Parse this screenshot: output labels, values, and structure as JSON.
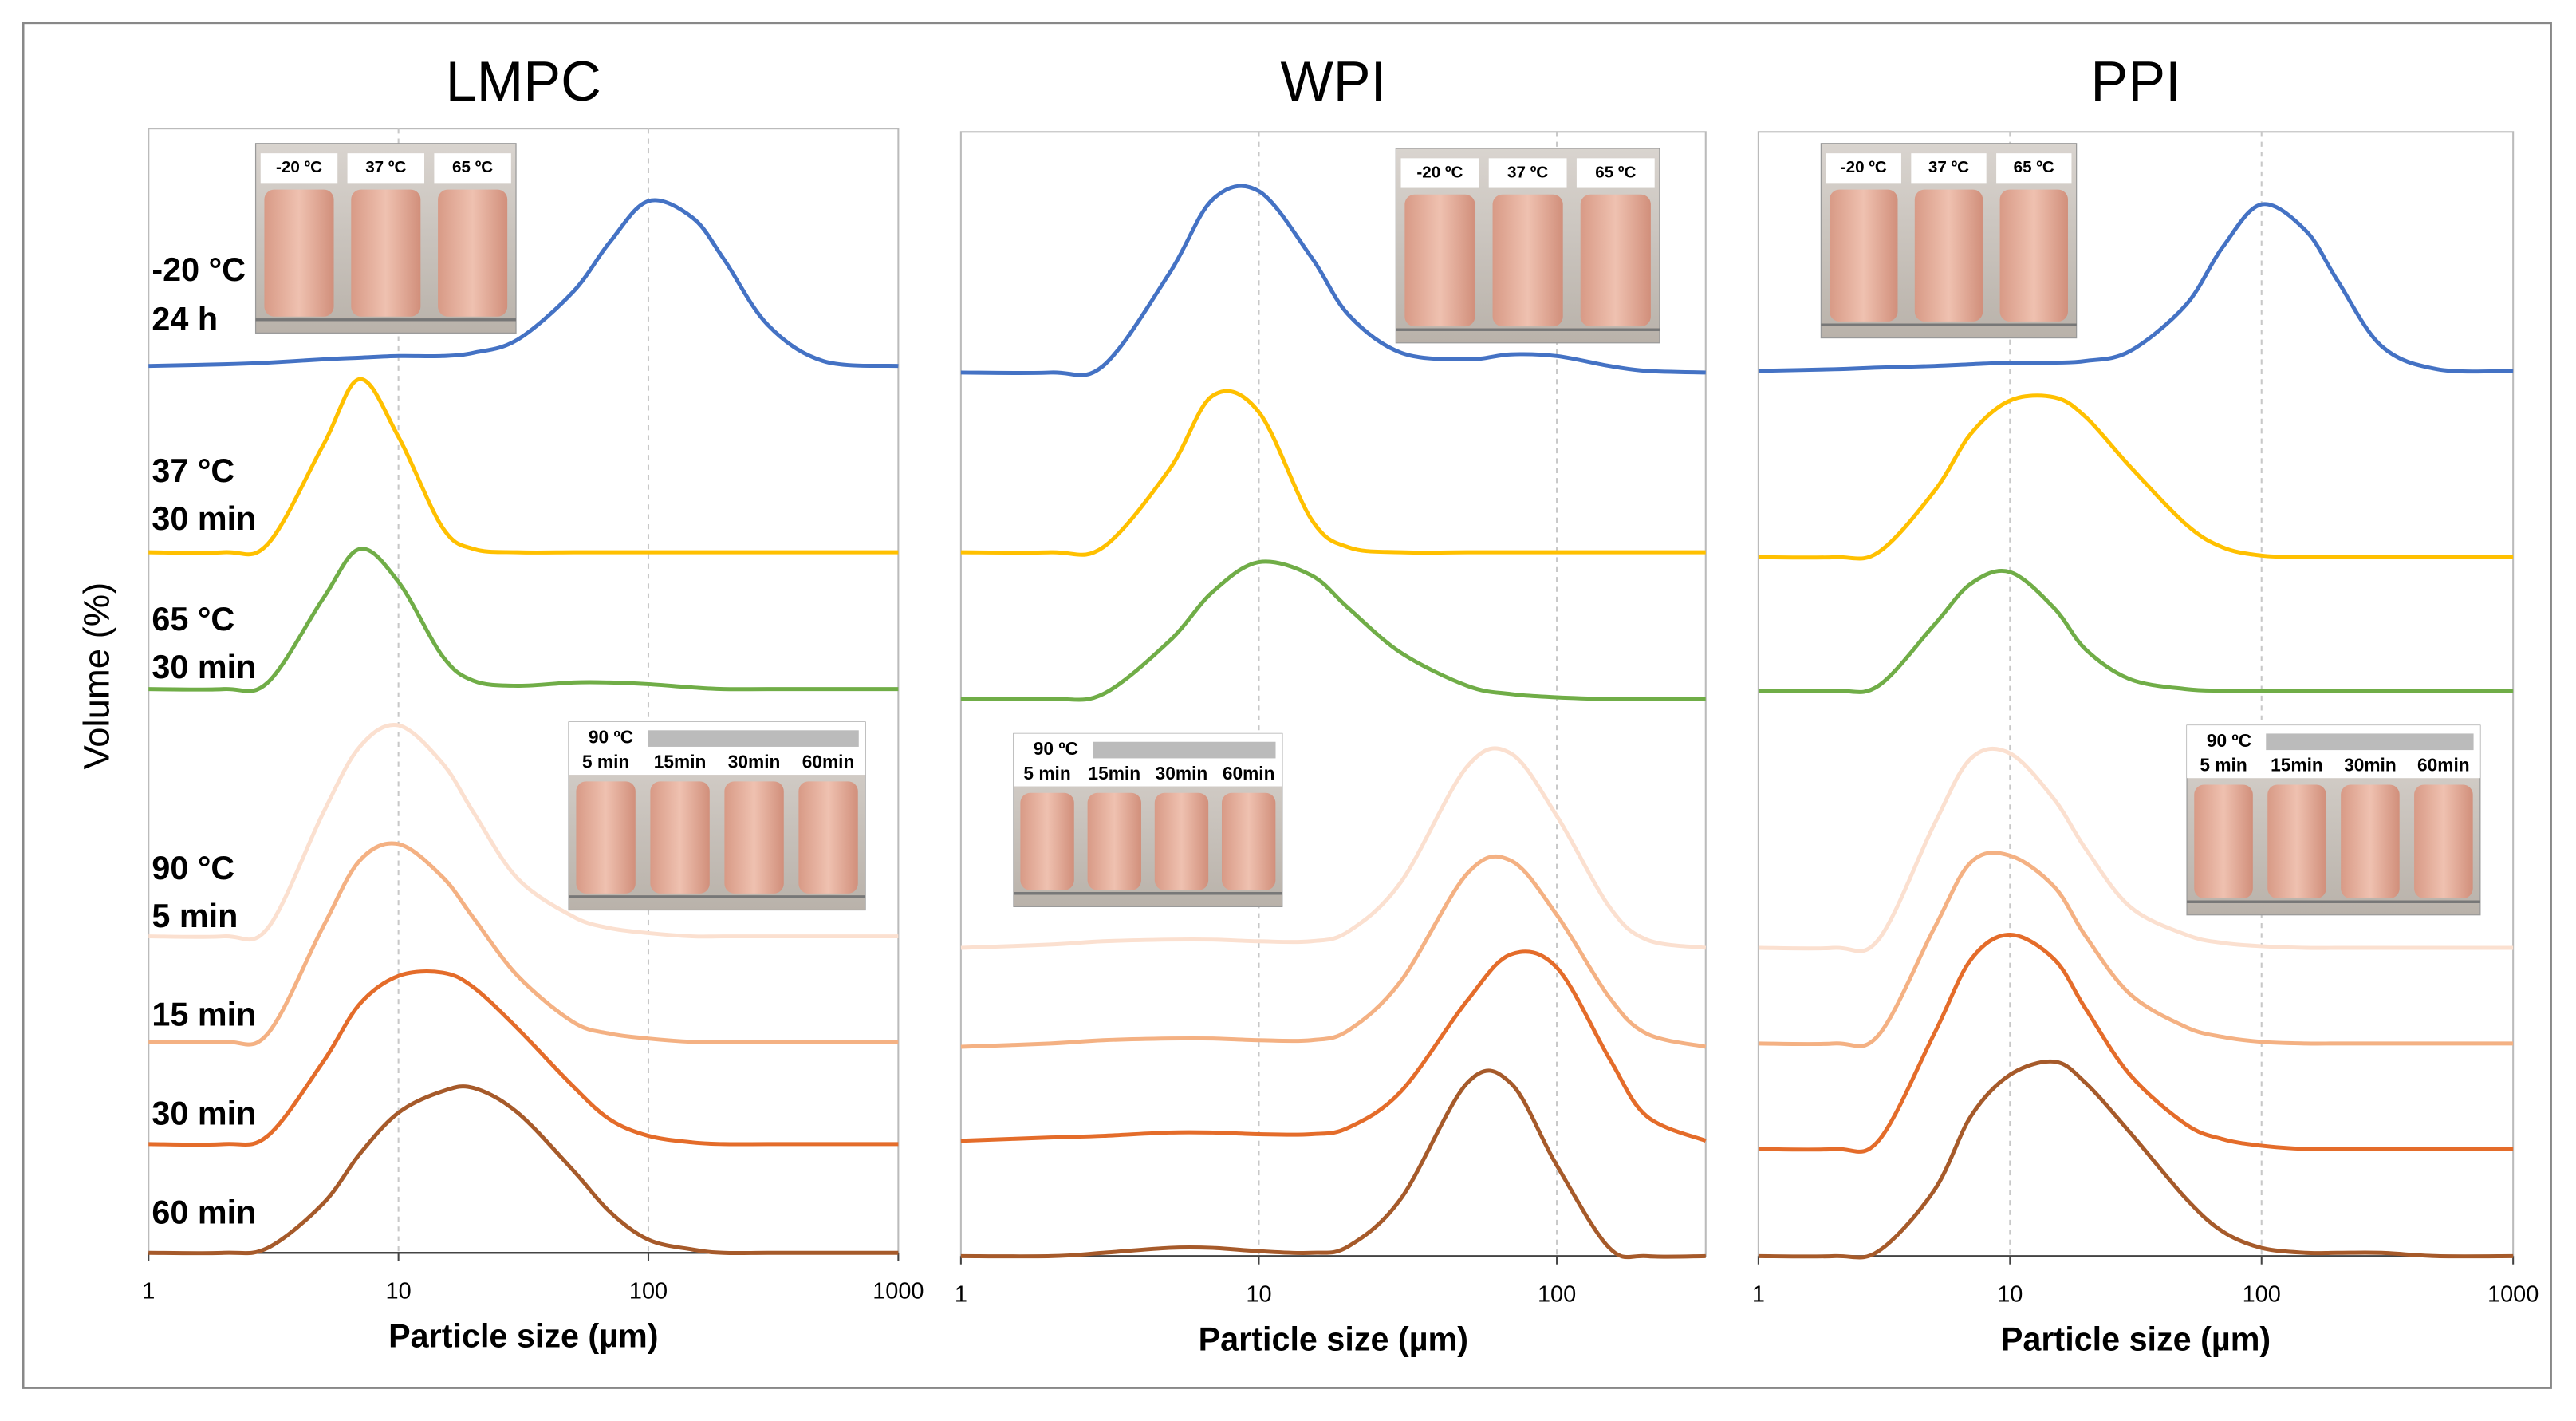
{
  "chart_data": [
    {
      "type": "line",
      "title": "LMPC",
      "xlabel": "Particle size (µm)",
      "ylabel": "Volume (%)",
      "xscale": "log",
      "xlim": [
        1,
        1000
      ],
      "xticks": [
        1,
        10,
        100,
        1000
      ],
      "grid": true,
      "x": [
        1,
        2,
        3,
        5,
        7,
        10,
        15,
        20,
        30,
        50,
        70,
        100,
        150,
        200,
        300,
        500,
        1000
      ],
      "inset_top": {
        "labels": [
          "-20 ºC",
          "37 ºC",
          "65 ºC"
        ]
      },
      "inset_bottom": {
        "labels": [
          "90 ºC",
          "5 min",
          "15min",
          "30min",
          "60min"
        ]
      },
      "series": [
        {
          "name": [
            "-20 °C",
            "24 h"
          ],
          "color": "#4472c4",
          "values": [
            0,
            0.1,
            0.2,
            0.4,
            0.5,
            0.6,
            0.6,
            0.8,
            1.6,
            4.5,
            7.5,
            10.0,
            9.0,
            6.5,
            2.5,
            0.3,
            0
          ]
        },
        {
          "name": [
            "37 °C",
            "30 min"
          ],
          "color": "#ffc000",
          "values": [
            0,
            0,
            0.5,
            6.5,
            10.5,
            7.0,
            1.5,
            0.2,
            0,
            0,
            0,
            0,
            0,
            0,
            0,
            0,
            0
          ]
        },
        {
          "name": [
            "65 °C",
            "30 min"
          ],
          "color": "#70ad47",
          "values": [
            0,
            0,
            0.4,
            5.5,
            8.5,
            6.5,
            2.0,
            0.5,
            0.2,
            0.4,
            0.4,
            0.3,
            0.1,
            0,
            0,
            0,
            0
          ]
        },
        {
          "name": [
            "90 °C",
            "5 min"
          ],
          "color": "#fbe0d0",
          "values": [
            0,
            0,
            0.5,
            7.5,
            11.5,
            12.8,
            10.5,
            7.5,
            3.5,
            1.2,
            0.5,
            0.2,
            0,
            0,
            0,
            0,
            0
          ]
        },
        {
          "name": [
            "15 min"
          ],
          "color": "#f4b183",
          "values": [
            0,
            0,
            0.5,
            7,
            11,
            12,
            10,
            7.5,
            4,
            1.2,
            0.5,
            0.2,
            0,
            0,
            0,
            0,
            0
          ]
        },
        {
          "name": [
            "30 min"
          ],
          "color": "#e46c2a",
          "values": [
            0,
            0,
            0.5,
            5,
            8.5,
            10.2,
            10.4,
            9.5,
            7,
            3.5,
            1.5,
            0.5,
            0.1,
            0,
            0,
            0,
            0
          ]
        },
        {
          "name": [
            "60 min"
          ],
          "color": "#a65a2a",
          "values": [
            0,
            0,
            0.3,
            3,
            6,
            8.5,
            9.8,
            10,
            8.5,
            5,
            2.5,
            0.8,
            0.2,
            0,
            0,
            0,
            0
          ]
        }
      ]
    },
    {
      "type": "line",
      "title": "WPI",
      "xlabel": "Particle size (µm)",
      "xscale": "log",
      "xlim": [
        1,
        316
      ],
      "xticks": [
        1,
        10,
        100
      ],
      "grid": true,
      "x": [
        1,
        2,
        3,
        5,
        7,
        10,
        15,
        20,
        30,
        50,
        70,
        100,
        150,
        200,
        316
      ],
      "inset_top": {
        "labels": [
          "-20 ºC",
          "37 ºC",
          "65 ºC"
        ]
      },
      "inset_bottom": {
        "labels": [
          "90 ºC",
          "5 min",
          "15min",
          "30min",
          "60min"
        ]
      },
      "series": [
        {
          "color": "#4472c4",
          "values": [
            0,
            0,
            0.4,
            6,
            10.5,
            11.0,
            7,
            3.5,
            1.2,
            0.8,
            1.1,
            1.0,
            0.4,
            0.1,
            0
          ]
        },
        {
          "color": "#ffc000",
          "values": [
            0,
            0,
            0.3,
            5,
            9.5,
            8.5,
            2,
            0.3,
            0,
            0,
            0,
            0,
            0,
            0,
            0
          ]
        },
        {
          "color": "#70ad47",
          "values": [
            0,
            0,
            0.3,
            3.5,
            6.5,
            8.3,
            7.5,
            5.5,
            2.8,
            0.8,
            0.3,
            0.1,
            0,
            0,
            0
          ]
        },
        {
          "color": "#fbe0d0",
          "values": [
            0,
            0.2,
            0.4,
            0.5,
            0.5,
            0.4,
            0.4,
            1,
            4,
            11,
            11.8,
            8,
            2.5,
            0.5,
            0
          ]
        },
        {
          "color": "#f4b183",
          "values": [
            0,
            0.2,
            0.4,
            0.5,
            0.5,
            0.4,
            0.4,
            1,
            4,
            10.5,
            11.3,
            8,
            3,
            0.8,
            0
          ]
        },
        {
          "color": "#e46c2a",
          "values": [
            0,
            0.2,
            0.3,
            0.5,
            0.5,
            0.4,
            0.4,
            0.8,
            3,
            8.5,
            11.3,
            10.5,
            5,
            1.5,
            0
          ]
        },
        {
          "color": "#a65a2a",
          "values": [
            0,
            0,
            0.2,
            0.5,
            0.5,
            0.3,
            0.2,
            0.6,
            3.5,
            10.5,
            10.5,
            5.5,
            0.5,
            0,
            0
          ]
        }
      ]
    },
    {
      "type": "line",
      "title": "PPI",
      "xlabel": "Particle size (µm)",
      "xscale": "log",
      "xlim": [
        1,
        1000
      ],
      "xticks": [
        1,
        10,
        100,
        1000
      ],
      "grid": true,
      "x": [
        1,
        2,
        3,
        5,
        7,
        10,
        15,
        20,
        30,
        50,
        70,
        100,
        150,
        200,
        300,
        500,
        1000
      ],
      "inset_top": {
        "labels": [
          "-20 ºC",
          "37 ºC",
          "65 ºC"
        ]
      },
      "inset_bottom": {
        "labels": [
          "90 ºC",
          "5 min",
          "15min",
          "30min",
          "60min"
        ]
      },
      "series": [
        {
          "color": "#4472c4",
          "values": [
            0,
            0.1,
            0.2,
            0.3,
            0.4,
            0.5,
            0.5,
            0.6,
            1.2,
            4,
            7.5,
            10.1,
            8.5,
            5.5,
            1.5,
            0.1,
            0
          ]
        },
        {
          "color": "#ffc000",
          "values": [
            0,
            0,
            0.3,
            4,
            7.5,
            9.5,
            9.7,
            8.5,
            5.5,
            2,
            0.6,
            0.1,
            0,
            0,
            0,
            0,
            0
          ]
        },
        {
          "color": "#70ad47",
          "values": [
            0,
            0,
            0.3,
            4,
            6.5,
            7.2,
            5,
            2.5,
            0.7,
            0.1,
            0,
            0,
            0,
            0,
            0,
            0,
            0
          ]
        },
        {
          "color": "#fbe0d0",
          "values": [
            0,
            0,
            0.5,
            7.5,
            11.5,
            11.8,
            9,
            6,
            2.5,
            0.8,
            0.3,
            0.1,
            0,
            0,
            0,
            0,
            0
          ]
        },
        {
          "color": "#f4b183",
          "values": [
            0,
            0,
            0.5,
            7,
            11,
            11.4,
            9.5,
            6.5,
            3,
            1,
            0.4,
            0.1,
            0,
            0,
            0,
            0,
            0
          ]
        },
        {
          "color": "#e46c2a",
          "values": [
            0,
            0,
            0.5,
            7,
            11.5,
            13,
            11.5,
            8.5,
            4.5,
            1.5,
            0.6,
            0.2,
            0,
            0,
            0,
            0,
            0
          ]
        },
        {
          "color": "#a65a2a",
          "values": [
            0,
            0,
            0.3,
            4,
            8.5,
            11,
            11.8,
            10.5,
            7.5,
            3.5,
            1.5,
            0.5,
            0.2,
            0.2,
            0.2,
            0,
            0
          ]
        }
      ]
    }
  ]
}
